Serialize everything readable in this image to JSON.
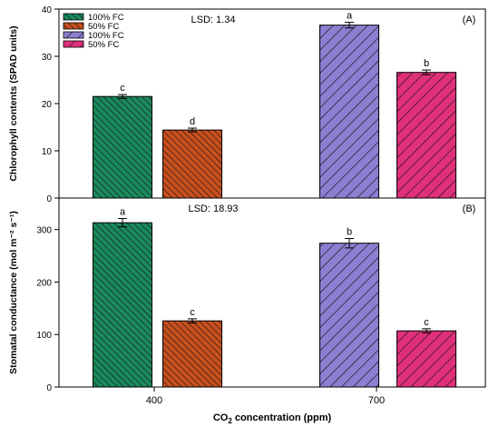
{
  "chart_data": [
    {
      "type": "bar",
      "panel_label": "(A)",
      "lsd_text": "LSD: 1.34",
      "ylabel": "Chlorophyll contents (SPAD units)",
      "ylim": [
        0,
        40
      ],
      "yticks": [
        "0",
        "10",
        "20",
        "30",
        "40"
      ],
      "legend": {
        "placement": "top-left",
        "entries": [
          {
            "label": "100% FC",
            "color": "#1a8a5c"
          },
          {
            "label": "50% FC",
            "color": "#c8501e"
          },
          {
            "label": "100% FC",
            "color": "#8a7fd0"
          },
          {
            "label": "50% FC",
            "color": "#e0307a"
          }
        ]
      },
      "series": [
        {
          "group": "400",
          "treatment": "100% FC",
          "value": 21.5,
          "error": 0.4,
          "letter": "c",
          "color": "#1a8a5c"
        },
        {
          "group": "400",
          "treatment": "50% FC",
          "value": 14.4,
          "error": 0.4,
          "letter": "d",
          "color": "#c8501e"
        },
        {
          "group": "700",
          "treatment": "100% FC",
          "value": 36.6,
          "error": 0.6,
          "letter": "a",
          "color": "#8a7fd0"
        },
        {
          "group": "700",
          "treatment": "50% FC",
          "value": 26.6,
          "error": 0.5,
          "letter": "b",
          "color": "#e0307a"
        }
      ]
    },
    {
      "type": "bar",
      "panel_label": "(B)",
      "lsd_text": "LSD: 18.93",
      "ylabel": "Stomatal conductance (mol m⁻² s⁻¹)",
      "ylim": [
        0,
        360
      ],
      "yticks": [
        "0",
        "100",
        "200",
        "300"
      ],
      "series": [
        {
          "group": "400",
          "treatment": "100% FC",
          "value": 313,
          "error": 8,
          "letter": "a",
          "color": "#1a8a5c"
        },
        {
          "group": "400",
          "treatment": "50% FC",
          "value": 126,
          "error": 4,
          "letter": "c",
          "color": "#c8501e"
        },
        {
          "group": "700",
          "treatment": "100% FC",
          "value": 274,
          "error": 9,
          "letter": "b",
          "color": "#8a7fd0"
        },
        {
          "group": "700",
          "treatment": "50% FC",
          "value": 107,
          "error": 4,
          "letter": "c",
          "color": "#e0307a"
        }
      ]
    }
  ],
  "x_axis": {
    "categories": [
      "400",
      "700"
    ],
    "xlabel_prefix": "CO",
    "xlabel_sub": "2",
    "xlabel_suffix": " concentration (ppm)"
  }
}
